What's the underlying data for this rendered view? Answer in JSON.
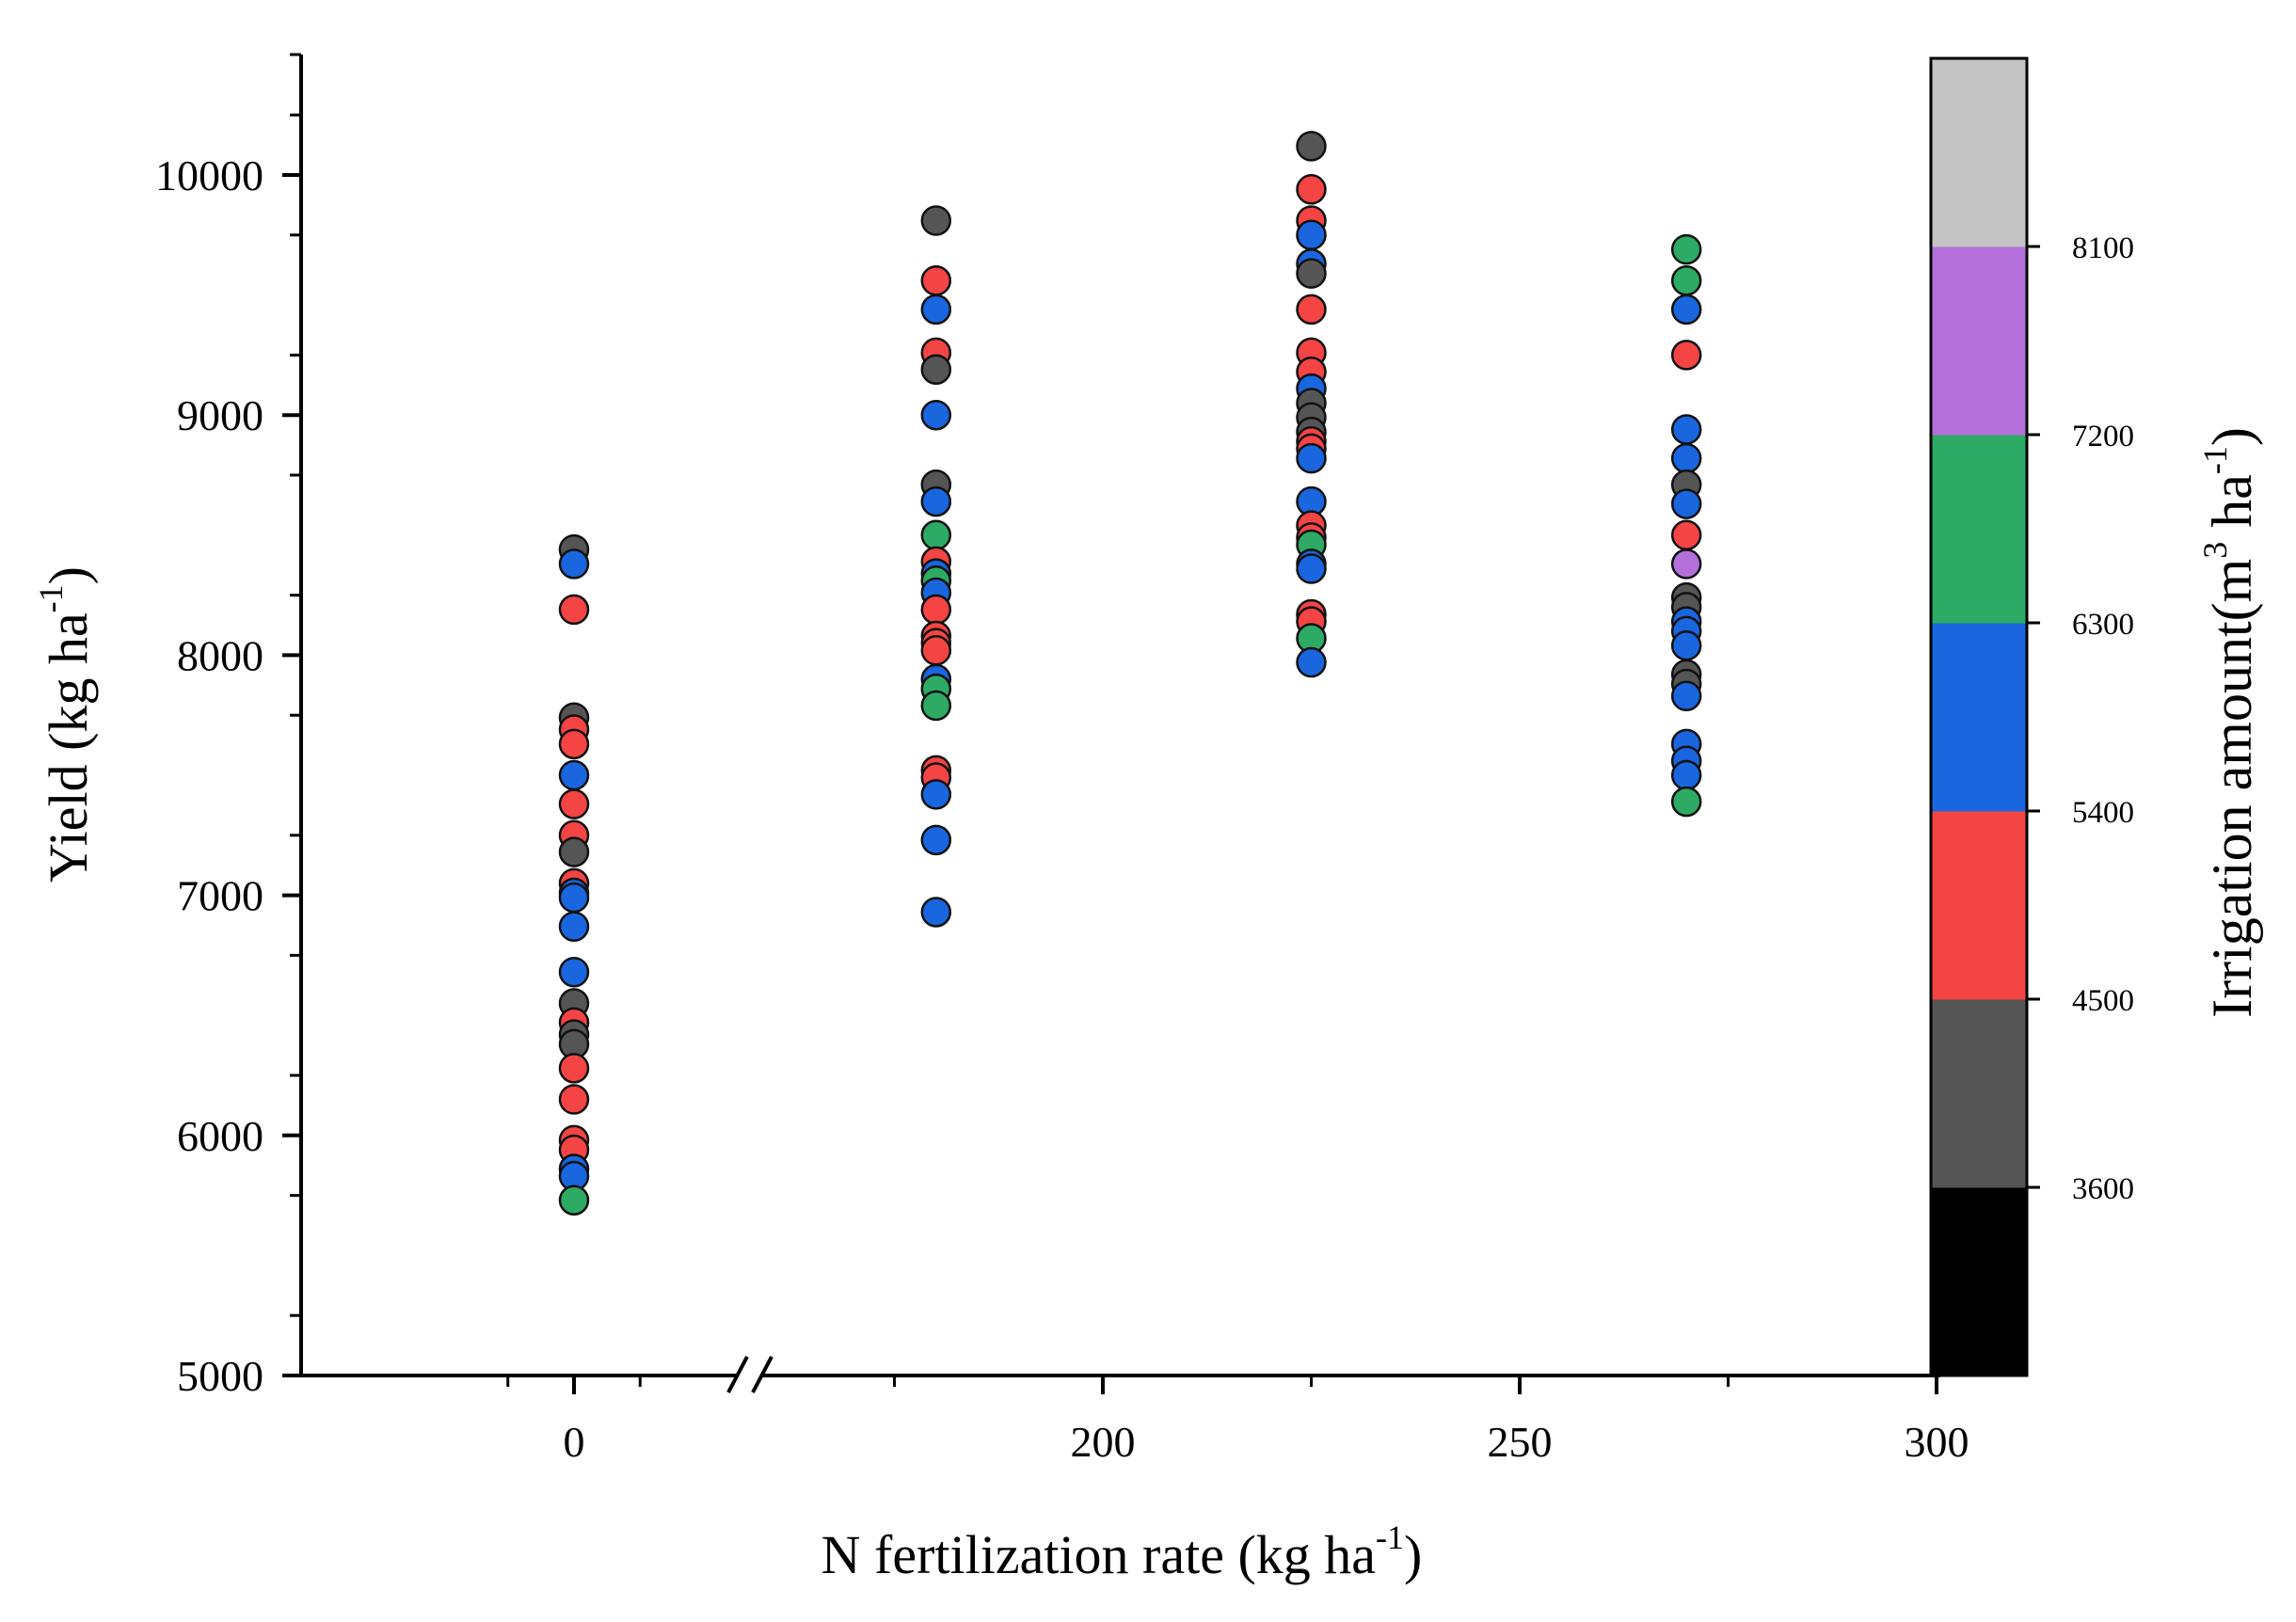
{
  "chart_data": {
    "type": "scatter",
    "xlabel": "N fertilization rate (kg ha",
    "xlabel_sup": "-1",
    "xlabel_end": ")",
    "ylabel": "Yield (kg ha",
    "ylabel_sup": "-1",
    "ylabel_end": ")",
    "ylim": [
      5000,
      10500
    ],
    "y_ticks": [
      5000,
      6000,
      7000,
      8000,
      9000,
      10000
    ],
    "x_ticks": [
      0,
      200,
      250,
      300
    ],
    "x_axis_break": "between 0 and 200",
    "colorbar": {
      "title": "Irrigation amount(m",
      "title_sup1": "3",
      "title_mid": " ha",
      "title_sup2": "-1",
      "title_end": ")",
      "tick_labels": [
        "3600",
        "4500",
        "5400",
        "6300",
        "7200",
        "8100"
      ],
      "bands": [
        {
          "label": "<3600",
          "color": "#000000"
        },
        {
          "label": "3600-4500",
          "color": "#555555"
        },
        {
          "label": "4500-5400",
          "color": "#f44444"
        },
        {
          "label": "5400-6300",
          "color": "#1966df"
        },
        {
          "label": "6300-7200",
          "color": "#2daa64"
        },
        {
          "label": "7200-8100",
          "color": "#b370db"
        },
        {
          "label": ">8100",
          "color": "#c3c3c3"
        }
      ]
    },
    "series": [
      {
        "x": 0,
        "points": [
          {
            "y": 8440,
            "band": 1
          },
          {
            "y": 8380,
            "band": 3
          },
          {
            "y": 8190,
            "band": 2
          },
          {
            "y": 7740,
            "band": 1
          },
          {
            "y": 7690,
            "band": 2
          },
          {
            "y": 7630,
            "band": 2
          },
          {
            "y": 7500,
            "band": 3
          },
          {
            "y": 7380,
            "band": 2
          },
          {
            "y": 7250,
            "band": 2
          },
          {
            "y": 7180,
            "band": 1
          },
          {
            "y": 7050,
            "band": 2
          },
          {
            "y": 7010,
            "band": 3
          },
          {
            "y": 6990,
            "band": 3
          },
          {
            "y": 6870,
            "band": 3
          },
          {
            "y": 6680,
            "band": 3
          },
          {
            "y": 6550,
            "band": 1
          },
          {
            "y": 6470,
            "band": 2
          },
          {
            "y": 6420,
            "band": 1
          },
          {
            "y": 6380,
            "band": 1
          },
          {
            "y": 6280,
            "band": 2
          },
          {
            "y": 6150,
            "band": 2
          },
          {
            "y": 5980,
            "band": 2
          },
          {
            "y": 5940,
            "band": 2
          },
          {
            "y": 5860,
            "band": 3
          },
          {
            "y": 5830,
            "band": 3
          },
          {
            "y": 5730,
            "band": 4
          }
        ]
      },
      {
        "x": 180,
        "points": [
          {
            "y": 9810,
            "band": 1
          },
          {
            "y": 9560,
            "band": 2
          },
          {
            "y": 9440,
            "band": 3
          },
          {
            "y": 9260,
            "band": 2
          },
          {
            "y": 9190,
            "band": 1
          },
          {
            "y": 9000,
            "band": 3
          },
          {
            "y": 8710,
            "band": 1
          },
          {
            "y": 8640,
            "band": 3
          },
          {
            "y": 8500,
            "band": 4
          },
          {
            "y": 8390,
            "band": 2
          },
          {
            "y": 8340,
            "band": 3
          },
          {
            "y": 8310,
            "band": 4
          },
          {
            "y": 8260,
            "band": 3
          },
          {
            "y": 8190,
            "band": 2
          },
          {
            "y": 8080,
            "band": 2
          },
          {
            "y": 8050,
            "band": 2
          },
          {
            "y": 8020,
            "band": 2
          },
          {
            "y": 7900,
            "band": 3
          },
          {
            "y": 7860,
            "band": 4
          },
          {
            "y": 7790,
            "band": 4
          },
          {
            "y": 7520,
            "band": 2
          },
          {
            "y": 7490,
            "band": 2
          },
          {
            "y": 7420,
            "band": 3
          },
          {
            "y": 7230,
            "band": 3
          },
          {
            "y": 6930,
            "band": 3
          }
        ]
      },
      {
        "x": 225,
        "points": [
          {
            "y": 10120,
            "band": 1
          },
          {
            "y": 9940,
            "band": 2
          },
          {
            "y": 9810,
            "band": 2
          },
          {
            "y": 9750,
            "band": 3
          },
          {
            "y": 9630,
            "band": 3
          },
          {
            "y": 9590,
            "band": 1
          },
          {
            "y": 9440,
            "band": 2
          },
          {
            "y": 9260,
            "band": 2
          },
          {
            "y": 9180,
            "band": 2
          },
          {
            "y": 9110,
            "band": 3
          },
          {
            "y": 9050,
            "band": 1
          },
          {
            "y": 8990,
            "band": 1
          },
          {
            "y": 8930,
            "band": 1
          },
          {
            "y": 8890,
            "band": 2
          },
          {
            "y": 8860,
            "band": 2
          },
          {
            "y": 8820,
            "band": 3
          },
          {
            "y": 8640,
            "band": 3
          },
          {
            "y": 8540,
            "band": 2
          },
          {
            "y": 8490,
            "band": 2
          },
          {
            "y": 8460,
            "band": 4
          },
          {
            "y": 8380,
            "band": 3
          },
          {
            "y": 8360,
            "band": 3
          },
          {
            "y": 8170,
            "band": 2
          },
          {
            "y": 8140,
            "band": 2
          },
          {
            "y": 8070,
            "band": 4
          },
          {
            "y": 7970,
            "band": 3
          }
        ]
      },
      {
        "x": 270,
        "points": [
          {
            "y": 9690,
            "band": 4
          },
          {
            "y": 9560,
            "band": 4
          },
          {
            "y": 9440,
            "band": 3
          },
          {
            "y": 9250,
            "band": 2
          },
          {
            "y": 8940,
            "band": 3
          },
          {
            "y": 8820,
            "band": 3
          },
          {
            "y": 8710,
            "band": 1
          },
          {
            "y": 8630,
            "band": 3
          },
          {
            "y": 8500,
            "band": 2
          },
          {
            "y": 8380,
            "band": 5
          },
          {
            "y": 8240,
            "band": 1
          },
          {
            "y": 8200,
            "band": 1
          },
          {
            "y": 8140,
            "band": 3
          },
          {
            "y": 8100,
            "band": 3
          },
          {
            "y": 8040,
            "band": 3
          },
          {
            "y": 7920,
            "band": 1
          },
          {
            "y": 7880,
            "band": 1
          },
          {
            "y": 7830,
            "band": 3
          },
          {
            "y": 7630,
            "band": 3
          },
          {
            "y": 7560,
            "band": 3
          },
          {
            "y": 7500,
            "band": 3
          },
          {
            "y": 7390,
            "band": 4
          }
        ]
      }
    ]
  }
}
